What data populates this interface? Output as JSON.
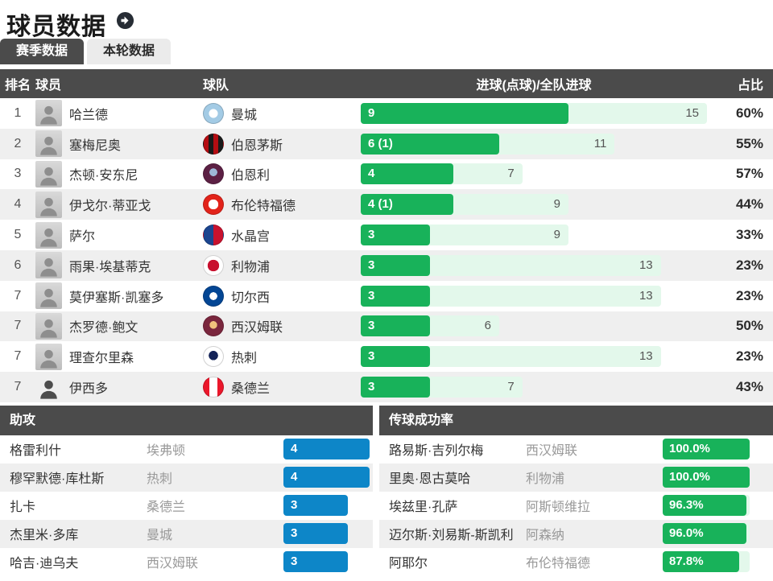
{
  "page": {
    "title": "球员数据"
  },
  "colors": {
    "dark": "#4b4b4b",
    "green": "#18b25a",
    "green_track": "#e3f8eb",
    "blue": "#0d86c8",
    "alt_row": "#efefef",
    "text": "#333333",
    "muted": "#999999",
    "title": "#1a1a1a",
    "icon": "#272d35"
  },
  "tabs": [
    {
      "label": "赛季数据",
      "state": "active"
    },
    {
      "label": "本轮数据",
      "state": "inactive"
    }
  ],
  "table": {
    "headers": {
      "rank": "排名",
      "player": "球员",
      "team": "球队",
      "goals": "进球(点球)/全队进球",
      "share": "占比"
    },
    "max_total_goals": 15,
    "rows": [
      {
        "rank": "1",
        "player": "哈兰德",
        "team": "曼城",
        "avatar": "photo",
        "badge": "radial-gradient(circle at 50% 50%, #ffffff 32%, #a3cbe5 33%)",
        "bar_label": "9",
        "player_goals": 9,
        "team_goals": 15,
        "share": "60%"
      },
      {
        "rank": "2",
        "player": "塞梅尼奥",
        "team": "伯恩茅斯",
        "avatar": "photo",
        "badge": "linear-gradient(90deg,#b50d12 0 25%,#1a1a1a 25% 50%,#b50d12 50% 75%,#1a1a1a 75%)",
        "bar_label": "6 (1)",
        "player_goals": 6,
        "team_goals": 11,
        "share": "55%"
      },
      {
        "rank": "3",
        "player": "杰顿·安东尼",
        "team": "伯恩利",
        "avatar": "photo",
        "badge": "radial-gradient(circle at 50% 42%, #9db8d8 0 26%, #5c2044 27%)",
        "bar_label": "4",
        "player_goals": 4,
        "team_goals": 7,
        "share": "57%"
      },
      {
        "rank": "4",
        "player": "伊戈尔·蒂亚戈",
        "team": "布伦特福德",
        "avatar": "photo",
        "badge": "radial-gradient(circle, #ffffff 36%, #e2231a 37%)",
        "bar_label": "4 (1)",
        "player_goals": 4,
        "team_goals": 9,
        "share": "44%"
      },
      {
        "rank": "5",
        "player": "萨尔",
        "team": "水晶宫",
        "avatar": "photo",
        "badge": "linear-gradient(90deg,#1b458f 0 50%,#c8122e 50%)",
        "bar_label": "3",
        "player_goals": 3,
        "team_goals": 9,
        "share": "33%"
      },
      {
        "rank": "6",
        "player": "雨果·埃基蒂克",
        "team": "利物浦",
        "avatar": "photo",
        "badge": "radial-gradient(circle, #c8102e 42%, #ffffff 43%)",
        "bar_label": "3",
        "player_goals": 3,
        "team_goals": 13,
        "share": "23%"
      },
      {
        "rank": "7",
        "player": "莫伊塞斯·凯塞多",
        "team": "切尔西",
        "avatar": "photo",
        "badge": "radial-gradient(circle, #ffffff 28%, #034694 29%)",
        "bar_label": "3",
        "player_goals": 3,
        "team_goals": 13,
        "share": "23%"
      },
      {
        "rank": "7",
        "player": "杰罗德·鲍文",
        "team": "西汉姆联",
        "avatar": "photo",
        "badge": "radial-gradient(circle at 50% 45%, #f1c27d 0 26%, #7a263d 27%)",
        "bar_label": "3",
        "player_goals": 3,
        "team_goals": 6,
        "share": "50%"
      },
      {
        "rank": "7",
        "player": "理查尔里森",
        "team": "热刺",
        "avatar": "photo",
        "badge": "radial-gradient(circle at 50% 45%, #132257 0 32%, #ffffff 33%)",
        "bar_label": "3",
        "player_goals": 3,
        "team_goals": 13,
        "share": "23%"
      },
      {
        "rank": "7",
        "player": "伊西多",
        "team": "桑德兰",
        "avatar": "silhouette",
        "badge": "linear-gradient(90deg,#eb172b 0 30%,#ffffff 30% 70%,#eb172b 70%)",
        "bar_label": "3",
        "player_goals": 3,
        "team_goals": 7,
        "share": "43%"
      }
    ]
  },
  "assists": {
    "title": "助攻",
    "max_value": 4,
    "rows": [
      {
        "player": "格雷利什",
        "team": "埃弗顿",
        "label": "4",
        "value": 4
      },
      {
        "player": "穆罕默德·库杜斯",
        "team": "热刺",
        "label": "4",
        "value": 4
      },
      {
        "player": "扎卡",
        "team": "桑德兰",
        "label": "3",
        "value": 3
      },
      {
        "player": "杰里米·多库",
        "team": "曼城",
        "label": "3",
        "value": 3
      },
      {
        "player": "哈吉·迪乌夫",
        "team": "西汉姆联",
        "label": "3",
        "value": 3
      }
    ]
  },
  "pass_rate": {
    "title": "传球成功率",
    "rows": [
      {
        "player": "路易斯·吉列尔梅",
        "team": "西汉姆联",
        "label": "100.0%",
        "pct": 100
      },
      {
        "player": "里奥·恩古莫哈",
        "team": "利物浦",
        "label": "100.0%",
        "pct": 100
      },
      {
        "player": "埃兹里·孔萨",
        "team": "阿斯顿维拉",
        "label": "96.3%",
        "pct": 96.3
      },
      {
        "player": "迈尔斯·刘易斯-斯凯利",
        "team": "阿森纳",
        "label": "96.0%",
        "pct": 96
      },
      {
        "player": "阿耶尔",
        "team": "布伦特福德",
        "label": "87.8%",
        "pct": 87.8
      }
    ]
  }
}
